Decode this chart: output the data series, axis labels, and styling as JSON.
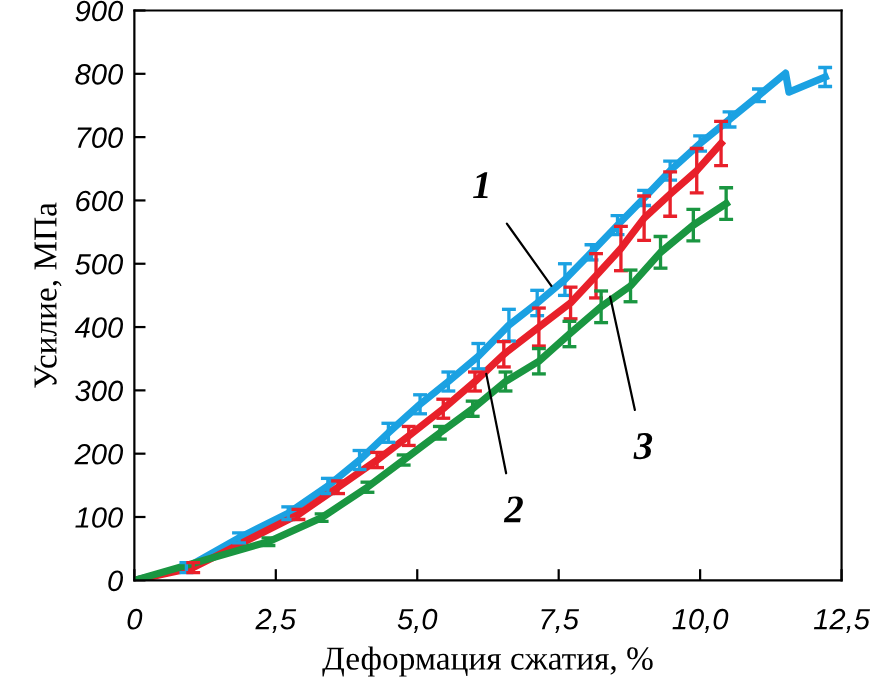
{
  "chart_data": {
    "type": "line",
    "xlabel": "Деформация сжатия, %",
    "ylabel": "Усилие, МПа",
    "xlim": [
      0,
      12.5
    ],
    "ylim": [
      0,
      900
    ],
    "xticks": [
      0,
      {
        "value": 2.5,
        "label": "2,5"
      },
      {
        "value": 5,
        "label": "5,0"
      },
      {
        "value": 7.5,
        "label": "7,5"
      },
      {
        "value": 10,
        "label": "10,0"
      },
      {
        "value": 12.5,
        "label": "12,5"
      }
    ],
    "yticks": [
      0,
      100,
      200,
      300,
      400,
      500,
      600,
      700,
      800,
      900
    ],
    "grid": false,
    "legend": false,
    "marker": "none",
    "line_style": "solid",
    "series": [
      {
        "color": "#1ba1e2",
        "x": [
          0,
          0.92,
          1.85,
          2.72,
          3.42,
          3.98,
          4.49,
          5.05,
          5.55,
          6.08,
          6.62,
          7.12,
          7.61,
          8.08,
          8.54,
          9.01,
          9.47,
          10.0,
          10.52,
          11.04,
          11.51,
          11.57,
          12.21
        ],
        "values": [
          0,
          20,
          67,
          106,
          149,
          190,
          233,
          278,
          314,
          354,
          403,
          438,
          475,
          518,
          561,
          604,
          647,
          690,
          728,
          766,
          801,
          771,
          795
        ],
        "errors": [
          null,
          8,
          8,
          10,
          12,
          15,
          15,
          15,
          15,
          20,
          25,
          20,
          25,
          12,
          15,
          12,
          15,
          12,
          12,
          10,
          null,
          null,
          15
        ]
      },
      {
        "color": "#e8202a",
        "x": [
          0,
          1.04,
          2.9,
          3.6,
          4.29,
          4.85,
          5.46,
          6.02,
          6.53,
          7.15,
          7.71,
          8.16,
          8.6,
          9.01,
          9.47,
          9.94,
          10.37
        ],
        "values": [
          0,
          20,
          104,
          147,
          190,
          228,
          271,
          314,
          357,
          400,
          438,
          481,
          524,
          572,
          610,
          647,
          690
        ],
        "errors": [
          null,
          8,
          8,
          10,
          12,
          15,
          15,
          15,
          20,
          30,
          25,
          35,
          35,
          35,
          35,
          35,
          35
        ]
      },
      {
        "color": "#1a9641",
        "x": [
          0,
          2.37,
          3.31,
          4.12,
          4.76,
          5.4,
          5.98,
          6.56,
          7.15,
          7.69,
          8.25,
          8.77,
          9.3,
          9.88,
          10.46
        ],
        "values": [
          0,
          61,
          99,
          147,
          190,
          233,
          271,
          314,
          346,
          389,
          432,
          465,
          518,
          561,
          595
        ],
        "errors": [
          null,
          6,
          6,
          8,
          8,
          10,
          12,
          15,
          20,
          20,
          25,
          25,
          25,
          25,
          25
        ]
      }
    ],
    "annotations": [
      {
        "text": "1",
        "x": 7.37,
        "y": 465
      },
      {
        "text": "2",
        "x": 6.22,
        "y": 326
      },
      {
        "text": "3",
        "x": 8.41,
        "y": 448
      }
    ]
  }
}
